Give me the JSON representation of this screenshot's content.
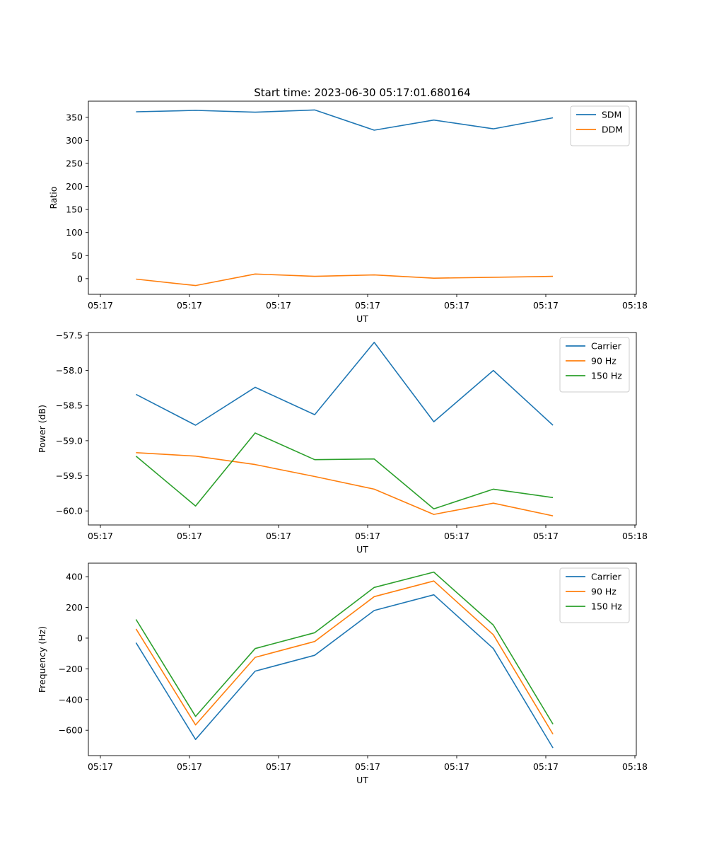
{
  "figure": {
    "title": "Start time: 2023-06-30 05:17:01.680164"
  },
  "colors": {
    "blue": "#1f77b4",
    "orange": "#ff7f0e",
    "green": "#2ca02c"
  },
  "chart_data": [
    {
      "type": "line",
      "title": "Start time: 2023-06-30 05:17:01.680164",
      "xlabel": "UT",
      "ylabel": "Ratio",
      "x_tick_labels": [
        "05:17",
        "05:17",
        "05:17",
        "05:17",
        "05:17",
        "05:17",
        "05:18"
      ],
      "x": [
        1,
        2,
        3,
        4,
        5,
        6,
        7,
        8
      ],
      "xlim": [
        0.2,
        9.4
      ],
      "ylim": [
        -34,
        385
      ],
      "yticks": [
        0,
        50,
        100,
        150,
        200,
        250,
        300,
        350
      ],
      "legend": "top-right",
      "series": [
        {
          "name": "SDM",
          "color": "#1f77b4",
          "values": [
            362,
            365,
            361,
            366,
            322,
            344,
            325,
            349
          ]
        },
        {
          "name": "DDM",
          "color": "#ff7f0e",
          "values": [
            -1,
            -15,
            10,
            5,
            8,
            1,
            3,
            5
          ]
        }
      ]
    },
    {
      "type": "line",
      "xlabel": "UT",
      "ylabel": "Power (dB)",
      "x_tick_labels": [
        "05:17",
        "05:17",
        "05:17",
        "05:17",
        "05:17",
        "05:17",
        "05:18"
      ],
      "x": [
        1,
        2,
        3,
        4,
        5,
        6,
        7,
        8
      ],
      "xlim": [
        0.2,
        9.4
      ],
      "ylim": [
        -60.2,
        -57.46
      ],
      "yticks": [
        -60.0,
        -59.5,
        -59.0,
        -58.5,
        -58.0,
        -57.5
      ],
      "ytick_labels": [
        "−60.0",
        "−59.5",
        "−59.0",
        "−58.5",
        "−58.0",
        "−57.5"
      ],
      "legend": "top-right",
      "series": [
        {
          "name": "Carrier",
          "color": "#1f77b4",
          "values": [
            -58.34,
            -58.78,
            -58.24,
            -58.63,
            -57.6,
            -58.73,
            -58.0,
            -58.78
          ]
        },
        {
          "name": "90 Hz",
          "color": "#ff7f0e",
          "values": [
            -59.17,
            -59.22,
            -59.34,
            -59.51,
            -59.69,
            -60.05,
            -59.89,
            -60.07
          ]
        },
        {
          "name": "150 Hz",
          "color": "#2ca02c",
          "values": [
            -59.22,
            -59.93,
            -58.89,
            -59.27,
            -59.26,
            -59.97,
            -59.69,
            -59.81
          ]
        }
      ]
    },
    {
      "type": "line",
      "xlabel": "UT",
      "ylabel": "Frequency (Hz)",
      "x_tick_labels": [
        "05:17",
        "05:17",
        "05:17",
        "05:17",
        "05:17",
        "05:17",
        "05:18"
      ],
      "x": [
        1,
        2,
        3,
        4,
        5,
        6,
        7,
        8
      ],
      "xlim": [
        0.2,
        9.4
      ],
      "ylim": [
        -765,
        488
      ],
      "yticks": [
        -600,
        -400,
        -200,
        0,
        200,
        400
      ],
      "ytick_labels": [
        "−600",
        "−400",
        "−200",
        "0",
        "200",
        "400"
      ],
      "legend": "top-right",
      "series": [
        {
          "name": "Carrier",
          "color": "#1f77b4",
          "values": [
            -30,
            -660,
            -215,
            -112,
            180,
            282,
            -68,
            -715
          ]
        },
        {
          "name": "90 Hz",
          "color": "#ff7f0e",
          "values": [
            60,
            -565,
            -125,
            -22,
            270,
            372,
            22,
            -625
          ]
        },
        {
          "name": "150 Hz",
          "color": "#2ca02c",
          "values": [
            122,
            -510,
            -68,
            35,
            330,
            430,
            85,
            -560
          ]
        }
      ]
    }
  ]
}
